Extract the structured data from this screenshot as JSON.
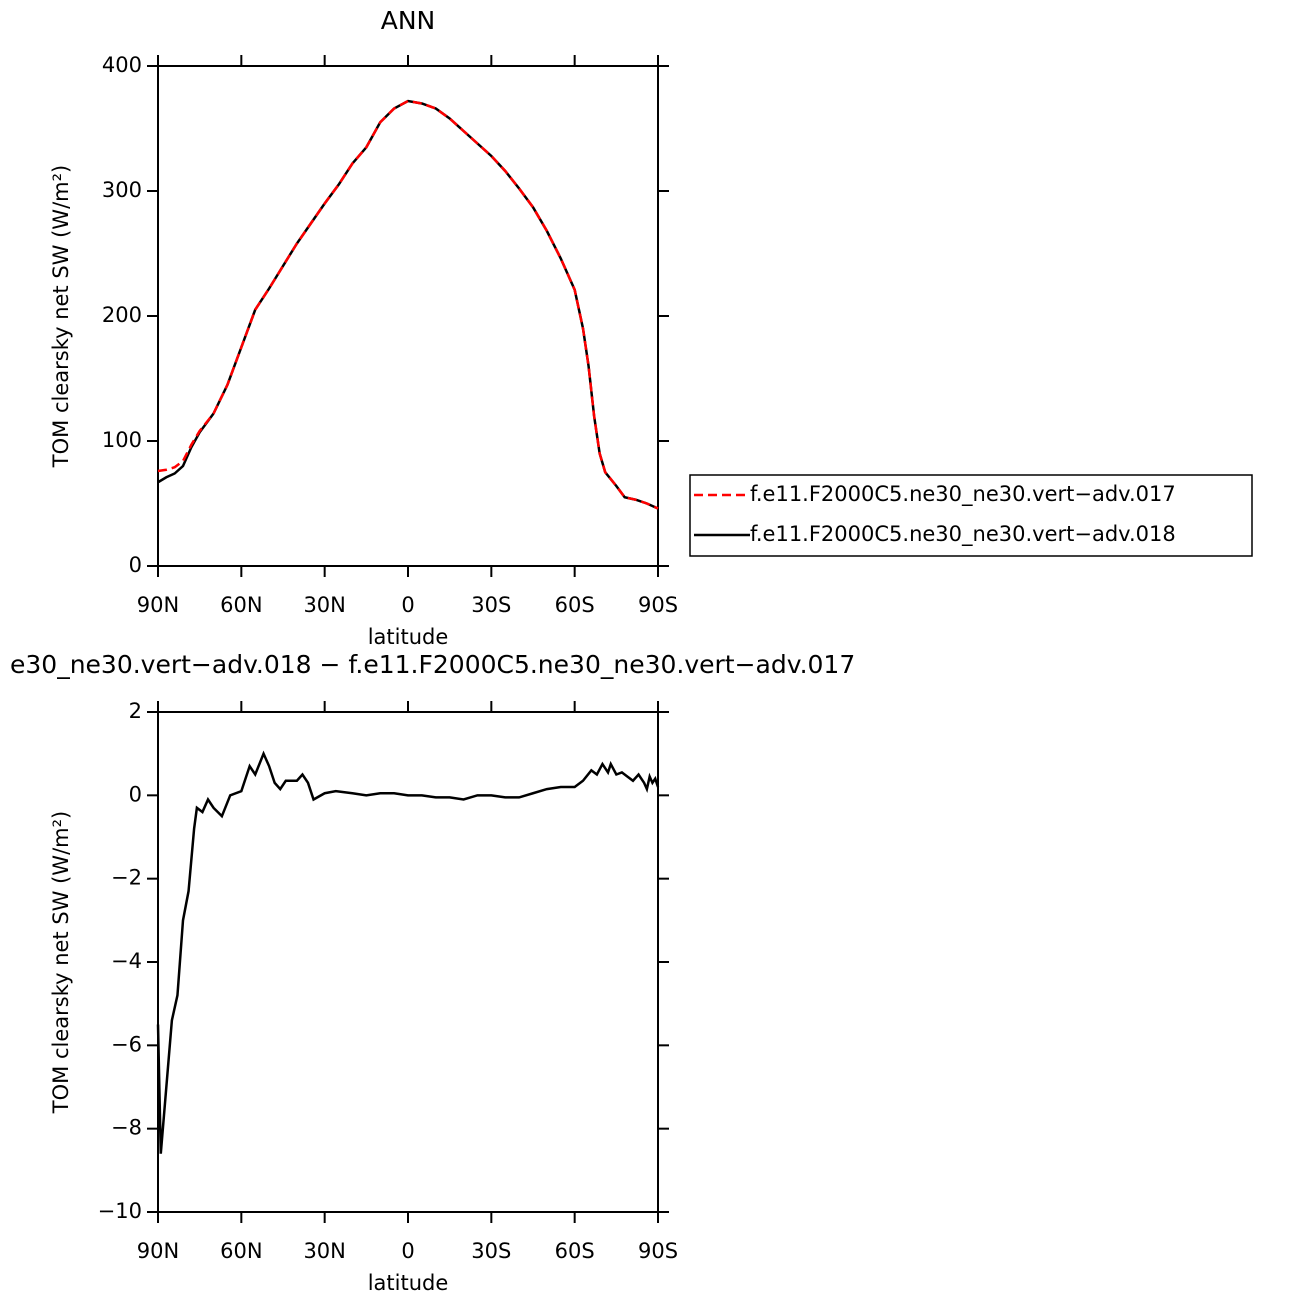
{
  "chart_data": [
    {
      "type": "line",
      "title": "ANN",
      "xlabel": "latitude",
      "ylabel": "TOM clearsky net SW (W/m²)",
      "xlim": [
        90,
        -90
      ],
      "xticks": [
        {
          "value": 90,
          "label": "90N"
        },
        {
          "value": 60,
          "label": "60N"
        },
        {
          "value": 30,
          "label": "30N"
        },
        0,
        {
          "value": -30,
          "label": "30S"
        },
        {
          "value": -60,
          "label": "60S"
        },
        {
          "value": -90,
          "label": "90S"
        }
      ],
      "ylim": [
        0,
        400
      ],
      "yticks": [
        0,
        100,
        200,
        300,
        400
      ],
      "x": [
        90,
        87,
        84,
        81,
        78,
        75,
        70,
        65,
        60,
        55,
        50,
        45,
        40,
        35,
        30,
        25,
        20,
        15,
        10,
        5,
        0,
        -5,
        -10,
        -15,
        -20,
        -25,
        -30,
        -35,
        -40,
        -45,
        -50,
        -55,
        -60,
        -63,
        -65,
        -67,
        -69,
        -71,
        -75,
        -78,
        -82,
        -86,
        -90
      ],
      "series": [
        {
          "name": "f.e11.F2000C5.ne30_ne30.vert−adv.017",
          "color": "#ff0000",
          "dash": true,
          "values": [
            76,
            77,
            79,
            84,
            97,
            108,
            122,
            145,
            175,
            205,
            222,
            240,
            258,
            274,
            290,
            305,
            322,
            335,
            355,
            366,
            372,
            370,
            366,
            358,
            348,
            338,
            328,
            316,
            302,
            287,
            268,
            246,
            221,
            190,
            160,
            120,
            90,
            75,
            64,
            55,
            53,
            50,
            46
          ]
        },
        {
          "name": "f.e11.F2000C5.ne30_ne30.vert−adv.018",
          "color": "#000000",
          "dash": false,
          "values": [
            67,
            71,
            74,
            80,
            95,
            107,
            122,
            145,
            175,
            205,
            222,
            240,
            258,
            274,
            290,
            305,
            322,
            335,
            355,
            366,
            372,
            370,
            366,
            358,
            348,
            338,
            328,
            316,
            302,
            287,
            268,
            246,
            221,
            190,
            160,
            120,
            90,
            75,
            64,
            55,
            53,
            50,
            46
          ]
        }
      ]
    },
    {
      "type": "line",
      "title": "e30_ne30.vert−adv.018 − f.e11.F2000C5.ne30_ne30.vert−adv.017",
      "xlabel": "latitude",
      "ylabel": "TOM clearsky net SW (W/m²)",
      "xlim": [
        90,
        -90
      ],
      "xticks": [
        {
          "value": 90,
          "label": "90N"
        },
        {
          "value": 60,
          "label": "60N"
        },
        {
          "value": 30,
          "label": "30N"
        },
        0,
        {
          "value": -30,
          "label": "30S"
        },
        {
          "value": -60,
          "label": "60S"
        },
        {
          "value": -90,
          "label": "90S"
        }
      ],
      "ylim": [
        -10,
        2
      ],
      "yticks": [
        {
          "value": -10,
          "label": "−10"
        },
        {
          "value": -8,
          "label": "−8"
        },
        {
          "value": -6,
          "label": "−6"
        },
        {
          "value": -4,
          "label": "−4"
        },
        {
          "value": -2,
          "label": "−2"
        },
        0,
        2
      ],
      "x": [
        90,
        89,
        87,
        85,
        83,
        81,
        79,
        77,
        76,
        74,
        72,
        70,
        67,
        64,
        60,
        57,
        55,
        52,
        50,
        48,
        46,
        44,
        40,
        38,
        36,
        34,
        30,
        26,
        20,
        15,
        10,
        5,
        0,
        -5,
        -10,
        -15,
        -20,
        -25,
        -30,
        -35,
        -40,
        -45,
        -50,
        -55,
        -60,
        -63,
        -66,
        -68,
        -70,
        -72,
        -73,
        -75,
        -77,
        -79,
        -81,
        -83,
        -85,
        -86,
        -87,
        -88,
        -89,
        -90
      ],
      "series": [
        {
          "name": null,
          "color": "#000000",
          "dash": false,
          "values": [
            -5.5,
            -8.6,
            -7,
            -5.4,
            -4.8,
            -3,
            -2.3,
            -0.8,
            -0.3,
            -0.4,
            -0.1,
            -0.3,
            -0.5,
            0,
            0.1,
            0.7,
            0.5,
            1.0,
            0.7,
            0.3,
            0.15,
            0.35,
            0.35,
            0.5,
            0.3,
            -0.1,
            0.05,
            0.1,
            0.05,
            0,
            0.05,
            0.05,
            0,
            0,
            -0.05,
            -0.05,
            -0.1,
            0,
            0,
            -0.05,
            -0.05,
            0.05,
            0.15,
            0.2,
            0.2,
            0.35,
            0.6,
            0.5,
            0.75,
            0.55,
            0.75,
            0.5,
            0.55,
            0.45,
            0.35,
            0.5,
            0.3,
            0.15,
            0.45,
            0.3,
            0.4,
            0.2
          ]
        }
      ]
    }
  ]
}
